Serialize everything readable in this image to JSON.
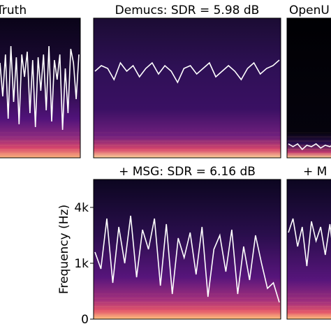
{
  "chart_data": [
    {
      "type": "heatmap",
      "title": "Truth",
      "colormap": "magma",
      "ylim_hz": [
        0,
        5000
      ],
      "contour": [
        3400,
        2200,
        3700,
        1400,
        4000,
        2000,
        3600,
        1200,
        3700,
        2900,
        3800,
        1600,
        3500,
        1100,
        3600,
        2400,
        3700,
        1700,
        4000,
        1300,
        3500,
        2800,
        3700,
        1000,
        3200,
        1600,
        3900,
        3400,
        2100,
        3700
      ]
    },
    {
      "type": "heatmap",
      "title": "Demucs: SDR = 5.98 dB",
      "colormap": "magma",
      "ylim_hz": [
        0,
        5000
      ],
      "contour": [
        3100,
        3300,
        3200,
        2800,
        3400,
        3100,
        3300,
        2900,
        3200,
        3400,
        3000,
        3300,
        3100,
        2700,
        3200,
        3300,
        3000,
        3200,
        3400,
        2900,
        3100,
        3300,
        3100,
        2800,
        3200,
        3400,
        3000,
        3200,
        3300,
        3500
      ]
    },
    {
      "type": "heatmap",
      "title": "OpenU",
      "colormap": "magma",
      "ylim_hz": [
        0,
        5000
      ],
      "contour": [
        500,
        400,
        500,
        300,
        450,
        400,
        500,
        350,
        450,
        400,
        500
      ]
    },
    {
      "type": "heatmap",
      "title": "+ MSG: SDR = 6.16 dB",
      "colormap": "magma",
      "ylabel": "Frequency (Hz)",
      "ylim_hz": [
        0,
        5000
      ],
      "yticks": [
        {
          "value": 0,
          "label": "0"
        },
        {
          "value": 1000,
          "label": "1k"
        },
        {
          "value": 4000,
          "label": "4k"
        }
      ],
      "contour": [
        2400,
        1800,
        3600,
        1300,
        3300,
        2000,
        3700,
        1500,
        3200,
        2500,
        3600,
        1200,
        3400,
        900,
        2900,
        2200,
        3100,
        1600,
        3300,
        800,
        2500,
        3000,
        1700,
        3200,
        900,
        2600,
        1400,
        3000,
        2000,
        1100,
        1300,
        600
      ]
    },
    {
      "type": "heatmap",
      "title": "+ M",
      "colormap": "magma",
      "ylim_hz": [
        0,
        5000
      ],
      "contour": [
        3100,
        3600,
        2600,
        3300,
        1900,
        3500,
        2800,
        3300,
        2300,
        3400,
        2000
      ]
    }
  ]
}
